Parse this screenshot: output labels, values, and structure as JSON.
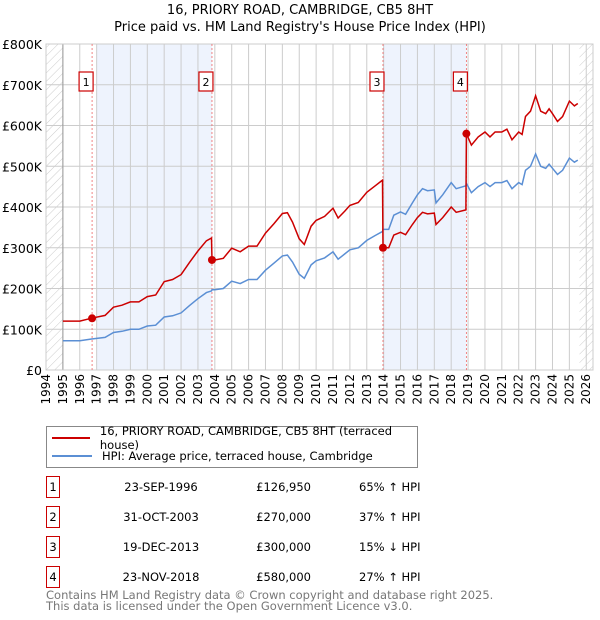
{
  "chart_data": {
    "type": "line",
    "title": "16, PRIORY ROAD, CAMBRIDGE, CB5 8HT",
    "subtitle": "Price paid vs. HM Land Registry's House Price Index (HPI)",
    "xlim": [
      1994,
      2026.4
    ],
    "ylim": [
      0,
      800000
    ],
    "y_ticks": [
      {
        "v": 0,
        "label": "£0"
      },
      {
        "v": 100000,
        "label": "£100K"
      },
      {
        "v": 200000,
        "label": "£200K"
      },
      {
        "v": 300000,
        "label": "£300K"
      },
      {
        "v": 400000,
        "label": "£400K"
      },
      {
        "v": 500000,
        "label": "£500K"
      },
      {
        "v": 600000,
        "label": "£600K"
      },
      {
        "v": 700000,
        "label": "£700K"
      },
      {
        "v": 800000,
        "label": "£800K"
      }
    ],
    "x_ticks": [
      "1994",
      "1995",
      "1996",
      "1997",
      "1998",
      "1999",
      "2000",
      "2001",
      "2002",
      "2003",
      "2004",
      "2005",
      "2006",
      "2007",
      "2008",
      "2009",
      "2010",
      "2011",
      "2012",
      "2013",
      "2014",
      "2015",
      "2016",
      "2017",
      "2018",
      "2019",
      "2020",
      "2021",
      "2022",
      "2023",
      "2024",
      "2025",
      "2026"
    ],
    "grid": true,
    "x": [
      1995,
      1996,
      1996.7,
      1997.5,
      1998,
      1998.5,
      1999,
      1999.5,
      2000,
      2000.5,
      2001,
      2001.5,
      2002,
      2002.5,
      2003,
      2003.5,
      2003.8,
      2003.83,
      2004,
      2004.5,
      2005,
      2005.5,
      2006,
      2006.5,
      2007,
      2007.5,
      2008,
      2008.3,
      2008.6,
      2009,
      2009.3,
      2009.7,
      2010,
      2010.5,
      2011,
      2011.3,
      2011.7,
      2012,
      2012.5,
      2013,
      2013.5,
      2013.93,
      2013.96,
      2014.3,
      2014.6,
      2015,
      2015.3,
      2015.7,
      2016,
      2016.3,
      2016.6,
      2017,
      2017.1,
      2017.5,
      2018,
      2018.3,
      2018.87,
      2018.9,
      2019.2,
      2019.6,
      2020,
      2020.3,
      2020.6,
      2021,
      2021.3,
      2021.6,
      2022,
      2022.2,
      2022.4,
      2022.7,
      2023,
      2023.3,
      2023.6,
      2023.8,
      2024,
      2024.3,
      2024.6,
      2025,
      2025.3,
      2025.5
    ],
    "series": [
      {
        "name": "16, PRIORY ROAD, CAMBRIDGE, CB5 8HT (terraced house)",
        "color": "#cc0000",
        "unit": "K",
        "values": [
          120,
          120,
          127,
          134,
          154,
          159,
          167,
          167,
          180,
          184,
          217,
          222,
          234,
          264,
          292,
          317,
          324,
          270,
          270,
          274,
          299,
          290,
          304,
          304,
          336,
          359,
          384,
          386,
          363,
          322,
          308,
          353,
          367,
          377,
          397,
          373,
          390,
          404,
          411,
          436,
          452,
          466,
          300,
          300,
          331,
          338,
          332,
          357,
          374,
          387,
          383,
          385,
          357,
          374,
          400,
          387,
          393,
          580,
          552,
          572,
          584,
          572,
          584,
          584,
          591,
          565,
          584,
          578,
          622,
          635,
          673,
          635,
          629,
          641,
          629,
          610,
          622,
          660,
          648,
          654
        ]
      },
      {
        "name": "HPI: Average price, terraced house, Cambridge",
        "color": "#5b8fd4",
        "unit": "K",
        "values": [
          72,
          72,
          76,
          80,
          92,
          95,
          100,
          100,
          108,
          110,
          130,
          133,
          140,
          158,
          175,
          190,
          194,
          197,
          197,
          200,
          218,
          212,
          222,
          222,
          245,
          262,
          280,
          282,
          265,
          235,
          225,
          258,
          268,
          275,
          290,
          272,
          285,
          295,
          300,
          318,
          330,
          340,
          345,
          345,
          380,
          388,
          382,
          410,
          430,
          445,
          440,
          442,
          410,
          430,
          460,
          445,
          452,
          458,
          435,
          450,
          460,
          450,
          460,
          460,
          465,
          445,
          460,
          455,
          490,
          500,
          530,
          500,
          495,
          505,
          495,
          480,
          490,
          520,
          510,
          515
        ]
      }
    ],
    "shaded_ranges": [
      [
        1997.0,
        2003.83
      ],
      [
        2013.96,
        2018.9
      ]
    ],
    "hatched_ranges": [
      [
        1994,
        1995
      ],
      [
        2025.6,
        2026.4
      ]
    ],
    "sales": [
      {
        "n": "1",
        "x": 1996.73,
        "value": 126950,
        "date": "23-SEP-1996",
        "price": "£126,950",
        "hpi": "65% ↑ HPI"
      },
      {
        "n": "2",
        "x": 2003.83,
        "value": 270000,
        "date": "31-OCT-2003",
        "price": "£270,000",
        "hpi": "37% ↑ HPI"
      },
      {
        "n": "3",
        "x": 2013.96,
        "value": 300000,
        "date": "19-DEC-2013",
        "price": "£300,000",
        "hpi": "15% ↓ HPI"
      },
      {
        "n": "4",
        "x": 2018.9,
        "value": 580000,
        "date": "23-NOV-2018",
        "price": "£580,000",
        "hpi": "27% ↑ HPI"
      }
    ]
  },
  "legend": {
    "property": "16, PRIORY ROAD, CAMBRIDGE, CB5 8HT (terraced house)",
    "hpi": "HPI: Average price, terraced house, Cambridge"
  },
  "footer": {
    "line1": "Contains HM Land Registry data © Crown copyright and database right 2025.",
    "line2": "This data is licensed under the Open Government Licence v3.0."
  }
}
